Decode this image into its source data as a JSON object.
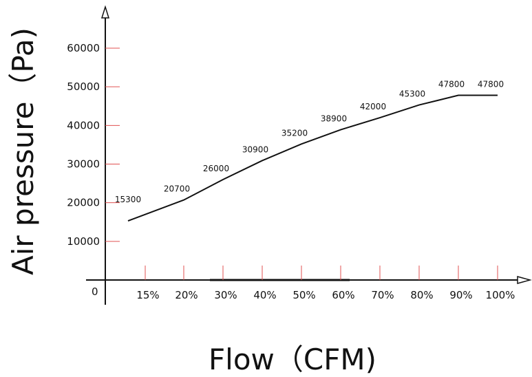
{
  "chart_data": {
    "type": "line",
    "title": "",
    "xlabel": "Flow（CFM)",
    "ylabel": "Air pressure（Pa)",
    "origin_label": "0",
    "categories": [
      "15%",
      "20%",
      "30%",
      "40%",
      "50%",
      "60%",
      "70%",
      "80%",
      "90%",
      "100%"
    ],
    "values": [
      15300,
      20700,
      26000,
      30900,
      35200,
      38900,
      42000,
      45300,
      47800,
      47800
    ],
    "data_labels": [
      "15300",
      "20700",
      "26000",
      "30900",
      "35200",
      "38900",
      "42000",
      "45300",
      "47800",
      "47800"
    ],
    "y_ticks": [
      10000,
      20000,
      30000,
      40000,
      50000,
      60000
    ],
    "y_tick_labels": [
      "10000",
      "20000",
      "30000",
      "40000",
      "50000",
      "60000"
    ],
    "ylim": [
      0,
      60000
    ],
    "grid": false,
    "legend": "none",
    "colors": {
      "line": "#111111",
      "axis": "#111111",
      "tick": "#e05050"
    }
  }
}
